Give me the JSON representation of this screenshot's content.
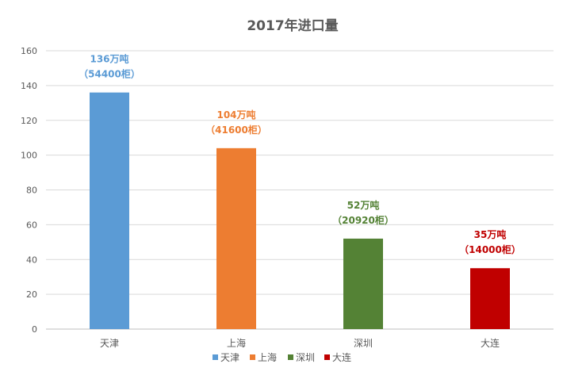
{
  "chart_data": {
    "type": "bar",
    "title": "2017年进口量",
    "categories": [
      "天津",
      "上海",
      "深圳",
      "大连"
    ],
    "values": [
      136,
      104,
      52,
      35
    ],
    "colors": [
      "#5b9bd5",
      "#ed7d31",
      "#548235",
      "#c00000"
    ],
    "data_labels": [
      [
        "136万吨",
        "（54400柜）"
      ],
      [
        "104万吨",
        "（41600柜）"
      ],
      [
        "52万吨",
        "（20920柜）"
      ],
      [
        "35万吨",
        "（14000柜）"
      ]
    ],
    "ylim": [
      0,
      160
    ],
    "yticks": [
      0,
      20,
      40,
      60,
      80,
      100,
      120,
      140,
      160
    ],
    "grid": true,
    "legend_placement": "bottom",
    "legend": [
      "天津",
      "上海",
      "深圳",
      "大连"
    ]
  }
}
